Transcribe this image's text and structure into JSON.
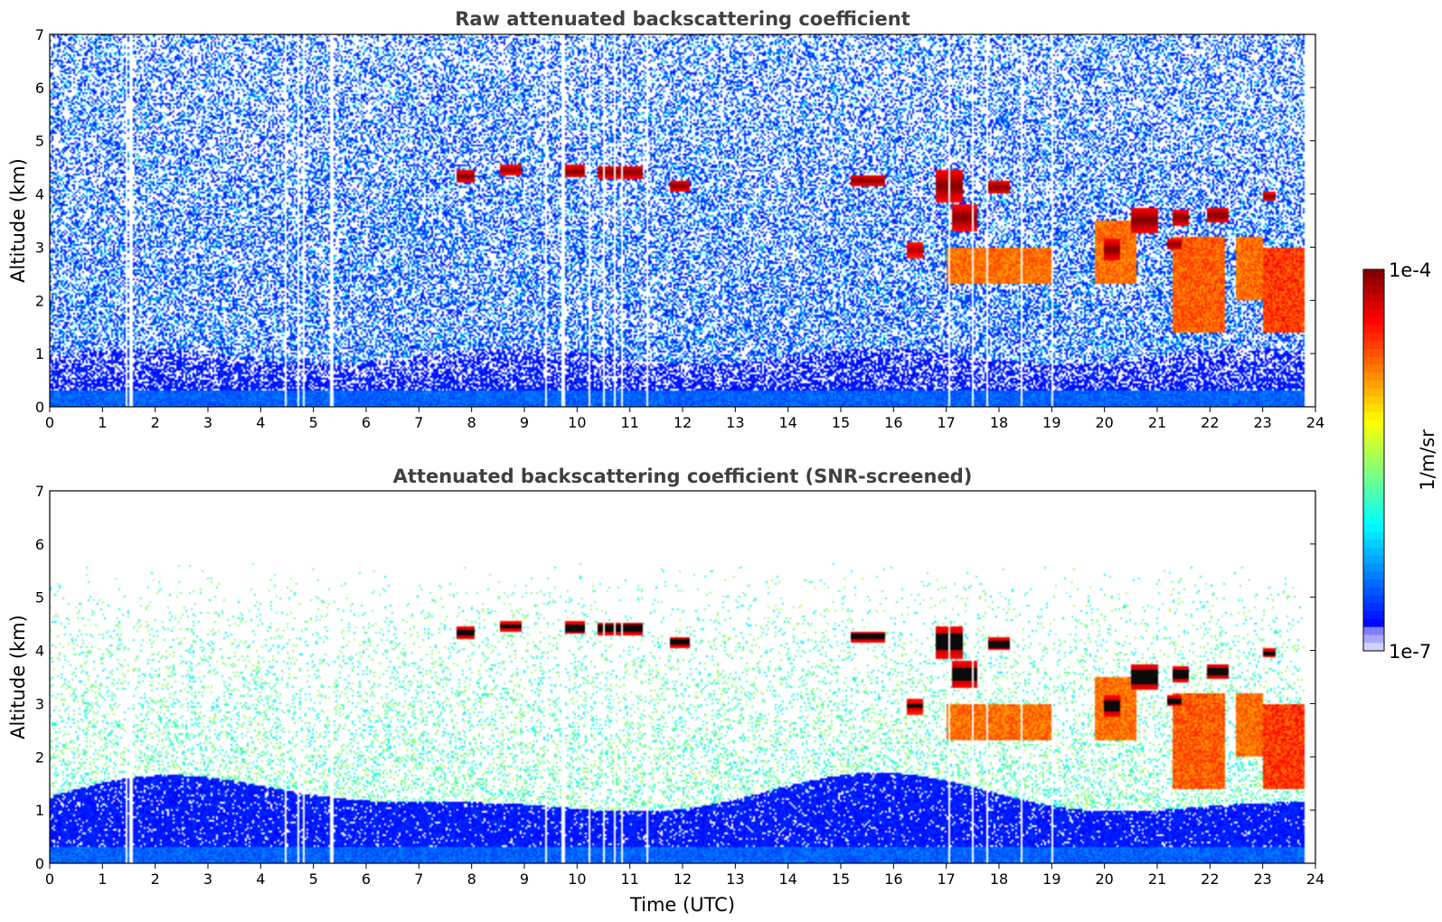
{
  "chart_data": [
    {
      "type": "heatmap",
      "title": "Raw attenuated backscattering coefficient",
      "xlabel": "",
      "ylabel": "Altitude (km)",
      "xlim": [
        0,
        24
      ],
      "ylim": [
        0,
        7
      ],
      "x_ticks": [
        "0",
        "1",
        "2",
        "3",
        "4",
        "5",
        "6",
        "7",
        "8",
        "9",
        "10",
        "11",
        "12",
        "13",
        "14",
        "15",
        "16",
        "17",
        "18",
        "19",
        "20",
        "21",
        "22",
        "23",
        "24"
      ],
      "y_ticks": [
        "0",
        "1",
        "2",
        "3",
        "4",
        "5",
        "6",
        "7"
      ],
      "data_end_time": 23.8,
      "features": [
        {
          "kind": "thin-cloud",
          "t0": 7.7,
          "t1": 8.05,
          "alt": 4.33,
          "depth": 0.12,
          "level": 1.0
        },
        {
          "kind": "thin-cloud",
          "t0": 8.55,
          "t1": 8.95,
          "alt": 4.45,
          "depth": 0.1,
          "level": 0.95
        },
        {
          "kind": "thin-cloud",
          "t0": 9.7,
          "t1": 10.15,
          "alt": 4.42,
          "depth": 0.12,
          "level": 1.0
        },
        {
          "kind": "thin-cloud",
          "t0": 10.4,
          "t1": 11.25,
          "alt": 4.41,
          "depth": 0.12,
          "level": 1.0
        },
        {
          "kind": "thin-cloud",
          "t0": 11.75,
          "t1": 12.15,
          "alt": 4.15,
          "depth": 0.1,
          "level": 1.0
        },
        {
          "kind": "thin-cloud",
          "t0": 15.2,
          "t1": 15.85,
          "alt": 4.25,
          "depth": 0.1,
          "level": 1.0
        },
        {
          "kind": "thin-cloud",
          "t0": 16.8,
          "t1": 17.3,
          "alt": 4.15,
          "depth": 0.3,
          "level": 1.0
        },
        {
          "kind": "thin-cloud",
          "t0": 17.1,
          "t1": 17.6,
          "alt": 3.55,
          "depth": 0.25,
          "level": 1.0
        },
        {
          "kind": "thin-cloud",
          "t0": 17.75,
          "t1": 18.2,
          "alt": 4.12,
          "depth": 0.12,
          "level": 1.0
        },
        {
          "kind": "thin-cloud",
          "t0": 16.25,
          "t1": 16.55,
          "alt": 2.95,
          "depth": 0.15,
          "level": 0.9
        },
        {
          "kind": "thin-cloud",
          "t0": 20.5,
          "t1": 21.0,
          "alt": 3.5,
          "depth": 0.25,
          "level": 1.0
        },
        {
          "kind": "thin-cloud",
          "t0": 21.3,
          "t1": 21.6,
          "alt": 3.55,
          "depth": 0.15,
          "level": 1.0
        },
        {
          "kind": "thin-cloud",
          "t0": 21.95,
          "t1": 22.35,
          "alt": 3.6,
          "depth": 0.15,
          "level": 1.0
        },
        {
          "kind": "thin-cloud",
          "t0": 23.0,
          "t1": 23.25,
          "alt": 3.95,
          "depth": 0.08,
          "level": 1.0
        },
        {
          "kind": "thin-cloud",
          "t0": 20.0,
          "t1": 20.3,
          "alt": 2.95,
          "depth": 0.2,
          "level": 1.0
        },
        {
          "kind": "thin-cloud",
          "t0": 21.2,
          "t1": 21.45,
          "alt": 3.05,
          "depth": 0.1,
          "level": 1.0
        },
        {
          "kind": "layer",
          "t0": 17.0,
          "t1": 19.0,
          "alt0": 2.3,
          "alt1": 3.0,
          "level": 0.6
        },
        {
          "kind": "layer",
          "t0": 19.8,
          "t1": 20.6,
          "alt0": 2.3,
          "alt1": 3.5,
          "level": 0.6
        },
        {
          "kind": "layer",
          "t0": 21.3,
          "t1": 22.3,
          "alt0": 1.4,
          "alt1": 3.2,
          "level": 0.65
        },
        {
          "kind": "layer",
          "t0": 22.5,
          "t1": 23.0,
          "alt0": 2.0,
          "alt1": 3.2,
          "level": 0.6
        },
        {
          "kind": "layer",
          "t0": 23.0,
          "t1": 23.8,
          "alt0": 1.4,
          "alt1": 3.0,
          "level": 0.75
        }
      ]
    },
    {
      "type": "heatmap",
      "title": "Attenuated backscattering coefficient (SNR-screened)",
      "xlabel": "Time (UTC)",
      "ylabel": "Altitude (km)",
      "xlim": [
        0,
        24
      ],
      "ylim": [
        0,
        7
      ],
      "x_ticks": [
        "0",
        "1",
        "2",
        "3",
        "4",
        "5",
        "6",
        "7",
        "8",
        "9",
        "10",
        "11",
        "12",
        "13",
        "14",
        "15",
        "16",
        "17",
        "18",
        "19",
        "20",
        "21",
        "22",
        "23",
        "24"
      ],
      "y_ticks": [
        "0",
        "1",
        "2",
        "3",
        "4",
        "5",
        "6",
        "7"
      ],
      "data_end_time": 23.8
    }
  ],
  "colorbar": {
    "label": "1/m/sr",
    "max_label": "1e-4",
    "min_label": "1e-7",
    "scale": "log",
    "colormap": "jet",
    "range": [
      1e-07,
      0.0001
    ]
  }
}
